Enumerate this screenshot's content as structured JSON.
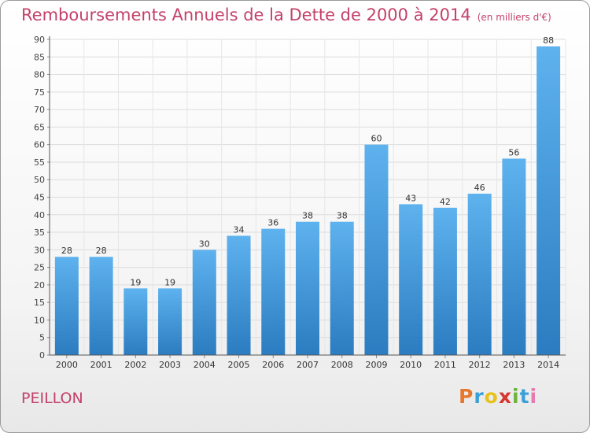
{
  "title": "Remboursements Annuels de la Dette de 2000 à 2014",
  "subtitle": "(en milliers d'€)",
  "place": "PEILLON",
  "logo": {
    "text": "Proxiti",
    "colors": [
      "#e8772e",
      "#3aa0d8",
      "#e8c21a",
      "#d6362f",
      "#6cb33f",
      "#3aa0d8",
      "#e87ab0"
    ]
  },
  "chart_data": {
    "type": "bar",
    "categories": [
      "2000",
      "2001",
      "2002",
      "2003",
      "2004",
      "2005",
      "2006",
      "2007",
      "2008",
      "2009",
      "2010",
      "2011",
      "2012",
      "2013",
      "2014"
    ],
    "values": [
      28,
      28,
      19,
      19,
      30,
      34,
      36,
      38,
      38,
      60,
      43,
      42,
      46,
      56,
      88
    ],
    "ylim": [
      0,
      90
    ],
    "yticks": [
      0,
      5,
      10,
      15,
      20,
      25,
      30,
      35,
      40,
      45,
      50,
      55,
      60,
      65,
      70,
      75,
      80,
      85,
      90
    ],
    "grid": true,
    "bar_color": "#4a9fe0"
  }
}
